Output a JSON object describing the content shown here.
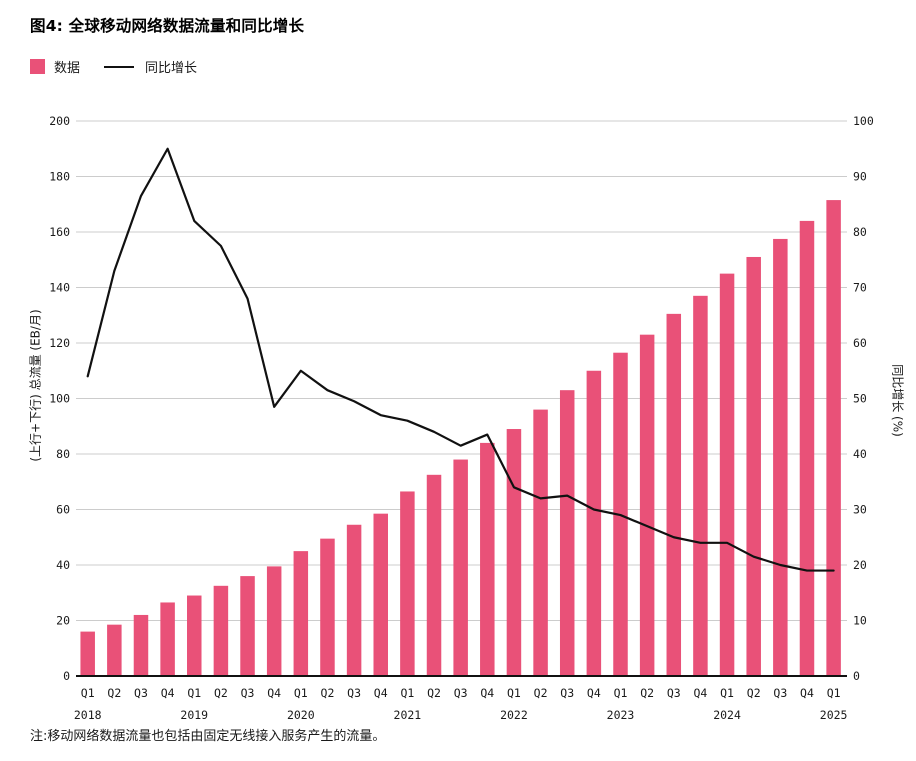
{
  "title": "图4: 全球移动网络数据流量和同比增长",
  "legend": {
    "bar_label": "数据",
    "line_label": "同比增长"
  },
  "footnote": "注:移动网络数据流量也包括由固定无线接入服务产生的流量。",
  "colors": {
    "bar": "#E95178",
    "line": "#111111",
    "grid": "#CCCCCC",
    "axis_line": "#111111",
    "text": "#1A1A1A"
  },
  "chart_data": {
    "type": "bar",
    "title": "图4: 全球移动网络数据流量和同比增长",
    "categories": [
      "Q1",
      "Q2",
      "Q3",
      "Q4",
      "Q1",
      "Q2",
      "Q3",
      "Q4",
      "Q1",
      "Q2",
      "Q3",
      "Q4",
      "Q1",
      "Q2",
      "Q3",
      "Q4",
      "Q1",
      "Q2",
      "Q3",
      "Q4",
      "Q1",
      "Q2",
      "Q3",
      "Q4",
      "Q1",
      "Q2",
      "Q3",
      "Q4",
      "Q1"
    ],
    "year_positions": [
      {
        "index": 0,
        "label": "2018"
      },
      {
        "index": 4,
        "label": "2019"
      },
      {
        "index": 8,
        "label": "2020"
      },
      {
        "index": 12,
        "label": "2021"
      },
      {
        "index": 16,
        "label": "2022"
      },
      {
        "index": 20,
        "label": "2023"
      },
      {
        "index": 24,
        "label": "2024"
      },
      {
        "index": 28,
        "label": "2025"
      }
    ],
    "series": [
      {
        "name": "数据",
        "type": "bar",
        "axis": "left",
        "values": [
          16,
          18.5,
          22,
          26.5,
          29,
          32.5,
          36,
          39.5,
          45,
          49.5,
          54.5,
          58.5,
          66.5,
          72.5,
          78,
          84,
          89,
          96,
          103,
          110,
          116.5,
          123,
          130.5,
          137,
          145,
          151,
          157.5,
          164,
          171.5
        ]
      },
      {
        "name": "同比增长",
        "type": "line",
        "axis": "right",
        "values": [
          54,
          73,
          86.5,
          95,
          82,
          77.5,
          68,
          48.5,
          55,
          51.5,
          49.5,
          47,
          46,
          44,
          41.5,
          43.5,
          34,
          32,
          32.5,
          30,
          29,
          27,
          25,
          24,
          24,
          21.5,
          20,
          19,
          19
        ]
      }
    ],
    "y_left": {
      "label": "(上行+下行) 总流量 (EB/月)",
      "min": 0,
      "max": 200,
      "step": 20
    },
    "y_right": {
      "label": "同比增长 (%)",
      "min": 0,
      "max": 100,
      "step": 10
    },
    "grid": true,
    "legend_position": "top-left"
  }
}
